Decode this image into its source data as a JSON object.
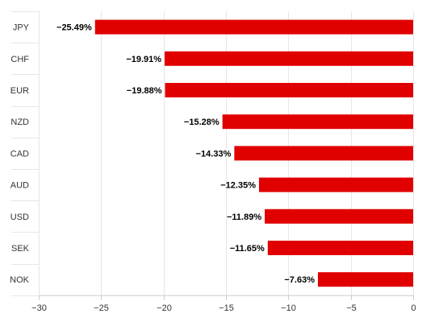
{
  "chart_data": {
    "type": "bar",
    "orientation": "horizontal",
    "categories": [
      "JPY",
      "CHF",
      "EUR",
      "NZD",
      "CAD",
      "AUD",
      "USD",
      "SEK",
      "NOK"
    ],
    "values": [
      -25.49,
      -19.91,
      -19.88,
      -15.28,
      -14.33,
      -12.35,
      -11.89,
      -11.65,
      -7.63
    ],
    "data_labels": [
      "−25.49%",
      "−19.91%",
      "−19.88%",
      "−15.28%",
      "−14.33%",
      "−12.35%",
      "−11.89%",
      "−11.65%",
      "−7.63%"
    ],
    "x_ticks": [
      -30,
      -25,
      -20,
      -15,
      -10,
      -5,
      0
    ],
    "x_tick_labels": [
      "−30",
      "−25",
      "−20",
      "−15",
      "−10",
      "−5",
      "0"
    ],
    "xlim": [
      -30,
      0
    ],
    "title": "",
    "xlabel": "",
    "ylabel": "",
    "grid": true,
    "legend": "none",
    "bar_color": "#e00000"
  }
}
